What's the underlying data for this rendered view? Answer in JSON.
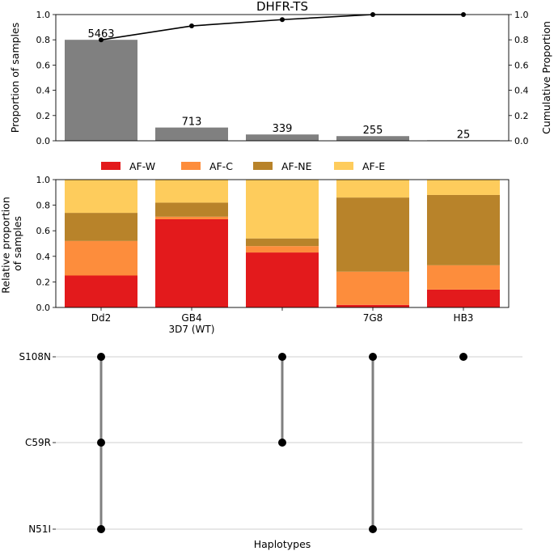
{
  "chart_data": [
    {
      "type": "bar",
      "title": "DHFR-TS",
      "ylabel": "Proportion of samples",
      "y2label": "Cumulative Proportion",
      "ylim": [
        0,
        1.0
      ],
      "y2lim": [
        0,
        1.0
      ],
      "yticks": [
        "0.0",
        "0.2",
        "0.4",
        "0.6",
        "0.8",
        "1.0"
      ],
      "bar_color": "#808080",
      "line_color": "#000000",
      "counts": [
        5463,
        713,
        339,
        255,
        25
      ],
      "values": [
        0.8,
        0.105,
        0.05,
        0.037,
        0.004
      ],
      "cumulative": [
        0.8,
        0.91,
        0.96,
        1.0,
        1.0
      ]
    },
    {
      "type": "bar",
      "stacked": true,
      "ylabel": "Relative proportion\nof samples",
      "ylim": [
        0,
        1.0
      ],
      "yticks": [
        "0.0",
        "0.2",
        "0.4",
        "0.6",
        "0.8",
        "1.0"
      ],
      "legend_position": "top",
      "categories": [
        [
          "Dd2"
        ],
        [
          "GB4",
          "3D7 (WT)"
        ],
        [],
        [
          "7G8"
        ],
        [
          "HB3"
        ]
      ],
      "series": [
        {
          "name": "AF-W",
          "color": "#e31a1c",
          "values": [
            0.25,
            0.69,
            0.43,
            0.02,
            0.14
          ]
        },
        {
          "name": "AF-C",
          "color": "#fd8d3c",
          "values": [
            0.27,
            0.02,
            0.05,
            0.26,
            0.19
          ]
        },
        {
          "name": "AF-NE",
          "color": "#b8832a",
          "values": [
            0.22,
            0.11,
            0.06,
            0.58,
            0.55
          ]
        },
        {
          "name": "AF-E",
          "color": "#fecc5c",
          "values": [
            0.26,
            0.18,
            0.46,
            0.14,
            0.12
          ]
        }
      ]
    },
    {
      "type": "scatter",
      "xlabel": "Haplotypes",
      "rows": [
        "S108N",
        "C59R",
        "N51I"
      ],
      "membership": [
        [
          1,
          1,
          1
        ],
        [
          0,
          0,
          0
        ],
        [
          1,
          1,
          0
        ],
        [
          1,
          0,
          1
        ],
        [
          1,
          0,
          0
        ]
      ],
      "dot_color": "#000000",
      "connector_color": "#808080"
    }
  ]
}
